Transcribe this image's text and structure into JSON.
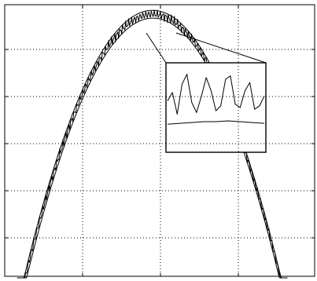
{
  "chart_data": {
    "type": "line",
    "title": "",
    "xlabel": "",
    "ylabel": "",
    "x_tick_labels": [],
    "y_tick_labels": [],
    "grid": true,
    "legend": "none",
    "color": "#000000",
    "x_range": [
      0,
      400
    ],
    "y_range": [
      0,
      1
    ],
    "series": [
      {
        "shape": "parabola",
        "x": [
          40,
          80,
          120,
          160,
          200,
          240,
          280,
          320,
          360
        ],
        "values": [
          0.14,
          0.54,
          0.83,
          0.97,
          0.99,
          0.89,
          0.66,
          0.31,
          0.02
        ]
      },
      {
        "shape": "parabola",
        "x": [
          40,
          80,
          120,
          160,
          200,
          240,
          280,
          320,
          360
        ],
        "values": [
          0.1,
          0.5,
          0.8,
          0.95,
          0.96,
          0.86,
          0.63,
          0.28,
          0.0
        ]
      },
      {
        "shape": "parabola with ripple",
        "x": [
          40,
          80,
          120,
          160,
          200,
          240,
          280,
          320,
          360
        ],
        "values": [
          0.12,
          0.53,
          0.82,
          0.95,
          0.97,
          0.88,
          0.65,
          0.3,
          0.01
        ]
      }
    ],
    "inset": {
      "type": "line",
      "zoom_of": "peak region",
      "series": [
        {
          "x": [
            0,
            2,
            4,
            6,
            8,
            10,
            12,
            14,
            16,
            18,
            20,
            22,
            24,
            26,
            28,
            30,
            32,
            34,
            36,
            38,
            40
          ],
          "values": [
            0.58,
            0.68,
            0.42,
            0.78,
            0.9,
            0.56,
            0.44,
            0.64,
            0.86,
            0.7,
            0.46,
            0.52,
            0.84,
            0.88,
            0.54,
            0.5,
            0.7,
            0.8,
            0.48,
            0.52,
            0.64
          ]
        },
        {
          "x": [
            0,
            5,
            10,
            15,
            20,
            25,
            30,
            35,
            40
          ],
          "values": [
            0.3,
            0.31,
            0.32,
            0.33,
            0.33,
            0.34,
            0.33,
            0.32,
            0.31
          ]
        }
      ]
    }
  }
}
